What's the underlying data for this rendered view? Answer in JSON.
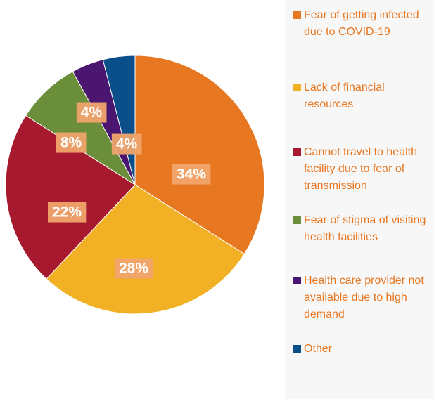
{
  "chart_data": {
    "type": "pie",
    "categories": [
      "Fear of getting infected due to COVID-19",
      "Lack of financial resources",
      "Cannot travel to health facility due to fear of transmission",
      "Fear of stigma of visiting health facilities",
      "Health care provider not available due to high demand",
      "Other"
    ],
    "values": [
      34,
      28,
      22,
      8,
      4,
      4
    ],
    "value_labels": [
      "34%",
      "28%",
      "22%",
      "8%",
      "4%",
      "4%"
    ],
    "colors": [
      "#e87722",
      "#f2b125",
      "#a6192e",
      "#6b8e3a",
      "#4b1670",
      "#0a4f8a"
    ]
  }
}
